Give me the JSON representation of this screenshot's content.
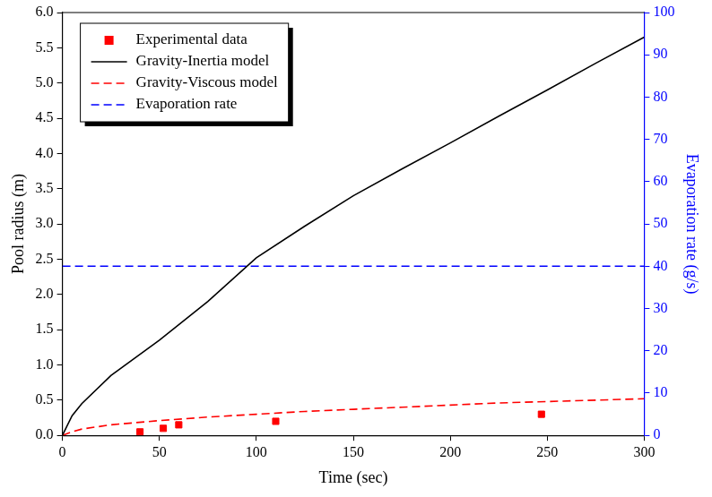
{
  "chart_data": {
    "type": "line",
    "xlabel": "Time (sec)",
    "ylabel": "Pool radius (m)",
    "y2label": "Evaporation rate (g/s)",
    "xlim": [
      0,
      300
    ],
    "xticks": [
      0,
      50,
      100,
      150,
      200,
      250,
      300
    ],
    "ylim": [
      0,
      6
    ],
    "yticks": [
      {
        "value": 0,
        "label": "0.0"
      },
      {
        "value": 0.5,
        "label": "0.5"
      },
      {
        "value": 1,
        "label": "1.0"
      },
      {
        "value": 1.5,
        "label": "1.5"
      },
      {
        "value": 2,
        "label": "2.0"
      },
      {
        "value": 2.5,
        "label": "2.5"
      },
      {
        "value": 3,
        "label": "3.0"
      },
      {
        "value": 3.5,
        "label": "3.5"
      },
      {
        "value": 4,
        "label": "4.0"
      },
      {
        "value": 4.5,
        "label": "4.5"
      },
      {
        "value": 5,
        "label": "5.0"
      },
      {
        "value": 5.5,
        "label": "5.5"
      },
      {
        "value": 6,
        "label": "6.0"
      }
    ],
    "y2lim": [
      0,
      100
    ],
    "y2ticks": [
      0,
      10,
      20,
      30,
      40,
      50,
      60,
      70,
      80,
      90,
      100
    ],
    "grid": false,
    "legend": "upper left",
    "series": [
      {
        "name": "Experimental data",
        "type": "scatter",
        "color": "#ff0000",
        "marker": "square",
        "x": [
          40,
          52,
          60,
          110,
          247
        ],
        "values": [
          0.05,
          0.1,
          0.15,
          0.2,
          0.3
        ]
      },
      {
        "name": "Gravity-Inertia model",
        "type": "line",
        "color": "#000000",
        "line_style": "solid",
        "x": [
          0,
          5,
          10,
          25,
          50,
          75,
          100,
          125,
          150,
          175,
          200,
          225,
          250,
          275,
          300
        ],
        "values": [
          0,
          0.28,
          0.45,
          0.85,
          1.35,
          1.9,
          2.52,
          2.97,
          3.4,
          3.78,
          4.15,
          4.53,
          4.9,
          5.28,
          5.65
        ]
      },
      {
        "name": "Gravity-Viscous model",
        "type": "line",
        "color": "#ff0000",
        "line_style": "dashed",
        "x": [
          0,
          5,
          10,
          25,
          50,
          75,
          100,
          125,
          150,
          175,
          200,
          225,
          250,
          275,
          300
        ],
        "values": [
          0,
          0.05,
          0.09,
          0.15,
          0.21,
          0.26,
          0.3,
          0.34,
          0.37,
          0.4,
          0.43,
          0.46,
          0.48,
          0.5,
          0.52
        ]
      },
      {
        "name": "Evaporation rate",
        "type": "line",
        "color": "#0000ff",
        "line_style": "dashed",
        "axis": "y2",
        "x": [
          0,
          300
        ],
        "values": [
          40,
          40
        ]
      }
    ]
  }
}
